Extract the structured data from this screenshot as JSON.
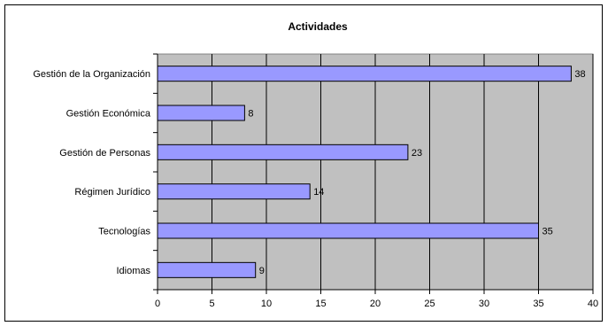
{
  "chart_data": {
    "type": "bar",
    "orientation": "horizontal",
    "title": "Actividades",
    "categories": [
      "Gestión de la Organización",
      "Gestión Económica",
      "Gestión de Personas",
      "Régimen Jurídico",
      "Tecnologías",
      "Idiomas"
    ],
    "values": [
      38,
      8,
      23,
      14,
      35,
      9
    ],
    "xlim": [
      0,
      40
    ],
    "x_ticks": [
      0,
      5,
      10,
      15,
      20,
      25,
      30,
      35,
      40
    ],
    "xlabel": "",
    "ylabel": "",
    "grid": true,
    "legend": "none",
    "colors": {
      "plot_background": "#c0c0c0",
      "bar_fill": "#9999ff",
      "bar_stroke": "#000000",
      "gridline": "#000000"
    }
  }
}
